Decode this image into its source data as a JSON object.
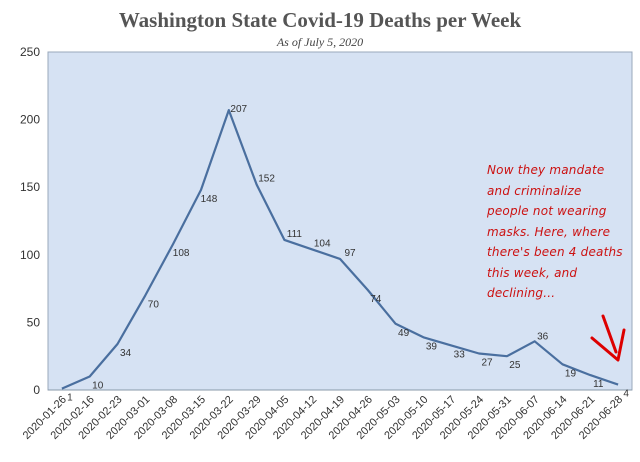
{
  "chart_data": {
    "type": "line",
    "title": "Washington State Covid-19 Deaths per Week",
    "subtitle": "As of July 5, 2020",
    "xlabel": "",
    "ylabel": "",
    "ylim": [
      0,
      250
    ],
    "yticks": [
      0,
      50,
      100,
      150,
      200,
      250
    ],
    "grid": false,
    "x": [
      "2020-01-26",
      "2020-02-16",
      "2020-02-23",
      "2020-03-01",
      "2020-03-08",
      "2020-03-15",
      "2020-03-22",
      "2020-03-29",
      "2020-04-05",
      "2020-04-12",
      "2020-04-19",
      "2020-04-26",
      "2020-05-03",
      "2020-05-10",
      "2020-05-17",
      "2020-05-24",
      "2020-05-31",
      "2020-06-07",
      "2020-06-14",
      "2020-06-21",
      "2020-06-28"
    ],
    "series": [
      {
        "values": [
          1,
          10,
          34,
          70,
          108,
          148,
          207,
          152,
          111,
          104,
          97,
          74,
          49,
          39,
          33,
          27,
          25,
          36,
          19,
          11,
          4
        ]
      }
    ],
    "annotation": "Now they mandate\nand criminalize\npeople not wearing\nmasks. Here, where\nthere's been 4 deaths\nthis week, and\ndeclining..."
  },
  "colors": {
    "plot_background": "#d6e2f3",
    "line": "#4a6f9f",
    "annotation": "#cc1111",
    "arrow": "#dd0000"
  }
}
